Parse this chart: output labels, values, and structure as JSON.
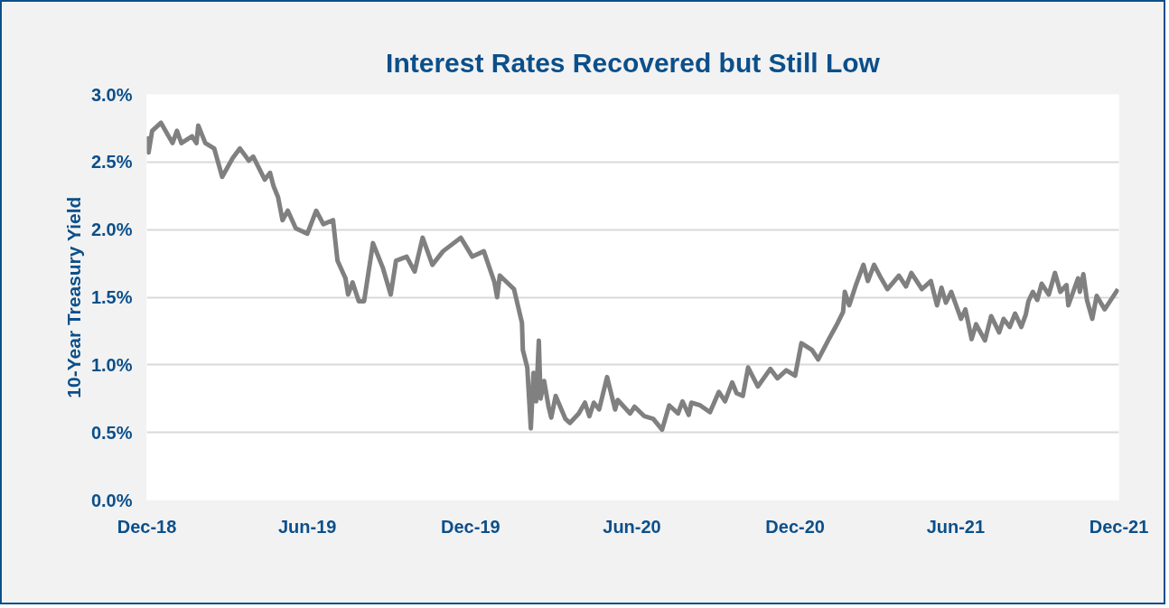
{
  "chart_data": {
    "type": "line",
    "title": "Interest Rates Recovered but Still Low",
    "ylabel": "10-Year Treasury Yield",
    "xlim": [
      "2018-12-31",
      "2021-12-31"
    ],
    "xticks": [
      {
        "value": "2018-12-31",
        "label": "Dec-18"
      },
      {
        "value": "2019-06-30",
        "label": "Jun-19"
      },
      {
        "value": "2019-12-31",
        "label": "Dec-19"
      },
      {
        "value": "2020-06-30",
        "label": "Jun-20"
      },
      {
        "value": "2020-12-31",
        "label": "Dec-20"
      },
      {
        "value": "2021-06-30",
        "label": "Jun-21"
      },
      {
        "value": "2021-12-31",
        "label": "Dec-21"
      }
    ],
    "ylim": [
      0,
      3
    ],
    "yticks": [
      {
        "value": 0,
        "label": "0.0%"
      },
      {
        "value": 0.5,
        "label": "0.5%"
      },
      {
        "value": 1,
        "label": "1.0%"
      },
      {
        "value": 1.5,
        "label": "1.5%"
      },
      {
        "value": 2,
        "label": "2.0%"
      },
      {
        "value": 2.5,
        "label": "2.5%"
      },
      {
        "value": 3,
        "label": "3.0%"
      }
    ],
    "grid": "y",
    "marker": "none",
    "line_style": "solid",
    "series": [
      {
        "color": "#808080",
        "x": [
          "2018-12-31",
          "2019-01-02",
          "2019-01-06",
          "2019-01-16",
          "2019-01-29",
          "2019-02-03",
          "2019-02-08",
          "2019-02-20",
          "2019-02-25",
          "2019-02-27",
          "2019-03-07",
          "2019-03-17",
          "2019-03-26",
          "2019-04-07",
          "2019-04-15",
          "2019-04-25",
          "2019-04-30",
          "2019-05-13",
          "2019-05-19",
          "2019-05-23",
          "2019-05-28",
          "2019-06-02",
          "2019-06-08",
          "2019-06-17",
          "2019-06-30",
          "2019-07-10",
          "2019-07-18",
          "2019-07-29",
          "2019-08-03",
          "2019-08-12",
          "2019-08-15",
          "2019-08-20",
          "2019-08-27",
          "2019-09-02",
          "2019-09-12",
          "2019-09-23",
          "2019-10-02",
          "2019-10-08",
          "2019-10-20",
          "2019-10-29",
          "2019-11-07",
          "2019-11-18",
          "2019-11-30",
          "2019-12-10",
          "2019-12-20",
          "2020-01-02",
          "2020-01-15",
          "2020-01-27",
          "2020-01-30",
          "2020-02-02",
          "2020-02-18",
          "2020-02-27",
          "2020-02-28",
          "2020-03-04",
          "2020-03-08",
          "2020-03-11",
          "2020-03-14",
          "2020-03-17",
          "2020-03-19",
          "2020-03-23",
          "2020-03-28",
          "2020-03-31",
          "2020-04-05",
          "2020-04-16",
          "2020-04-21",
          "2020-05-01",
          "2020-05-08",
          "2020-05-13",
          "2020-05-18",
          "2020-05-24",
          "2020-06-02",
          "2020-06-11",
          "2020-06-14",
          "2020-06-28",
          "2020-07-03",
          "2020-07-14",
          "2020-07-24",
          "2020-08-03",
          "2020-08-11",
          "2020-08-21",
          "2020-08-26",
          "2020-09-02",
          "2020-09-05",
          "2020-09-15",
          "2020-09-26",
          "2020-10-06",
          "2020-10-13",
          "2020-10-21",
          "2020-10-26",
          "2020-11-02",
          "2020-11-08",
          "2020-11-19",
          "2020-12-03",
          "2020-12-11",
          "2020-12-21",
          "2020-12-31",
          "2021-01-07",
          "2021-01-19",
          "2021-01-26",
          "2021-02-07",
          "2021-02-17",
          "2021-02-23",
          "2021-02-25",
          "2021-03-02",
          "2021-03-10",
          "2021-03-18",
          "2021-03-23",
          "2021-03-30",
          "2021-04-07",
          "2021-04-14",
          "2021-04-27",
          "2021-05-05",
          "2021-05-11",
          "2021-05-23",
          "2021-06-02",
          "2021-06-09",
          "2021-06-14",
          "2021-06-19",
          "2021-06-25",
          "2021-07-06",
          "2021-07-11",
          "2021-07-18",
          "2021-07-23",
          "2021-08-02",
          "2021-08-09",
          "2021-08-18",
          "2021-08-23",
          "2021-08-30",
          "2021-09-05",
          "2021-09-12",
          "2021-09-17",
          "2021-09-20",
          "2021-09-25",
          "2021-09-30",
          "2021-10-05",
          "2021-10-13",
          "2021-10-20",
          "2021-10-26",
          "2021-11-02",
          "2021-11-04",
          "2021-11-15",
          "2021-11-17",
          "2021-11-21",
          "2021-11-25",
          "2021-12-01",
          "2021-12-06",
          "2021-12-15",
          "2021-12-23",
          "2021-12-30"
        ],
        "values": [
          2.69,
          2.57,
          2.73,
          2.79,
          2.64,
          2.73,
          2.64,
          2.69,
          2.64,
          2.77,
          2.64,
          2.6,
          2.39,
          2.53,
          2.6,
          2.51,
          2.54,
          2.37,
          2.42,
          2.32,
          2.24,
          2.07,
          2.14,
          2.01,
          1.97,
          2.14,
          2.04,
          2.07,
          1.77,
          1.64,
          1.52,
          1.61,
          1.47,
          1.47,
          1.9,
          1.72,
          1.52,
          1.77,
          1.8,
          1.69,
          1.94,
          1.74,
          1.84,
          1.89,
          1.94,
          1.8,
          1.84,
          1.61,
          1.5,
          1.66,
          1.56,
          1.31,
          1.11,
          0.98,
          0.53,
          0.94,
          0.73,
          1.18,
          0.75,
          0.88,
          0.69,
          0.61,
          0.77,
          0.6,
          0.57,
          0.64,
          0.72,
          0.62,
          0.72,
          0.67,
          0.91,
          0.67,
          0.74,
          0.64,
          0.69,
          0.62,
          0.6,
          0.52,
          0.7,
          0.64,
          0.73,
          0.63,
          0.72,
          0.7,
          0.65,
          0.8,
          0.73,
          0.87,
          0.79,
          0.77,
          0.98,
          0.84,
          0.97,
          0.9,
          0.96,
          0.92,
          1.16,
          1.11,
          1.04,
          1.19,
          1.31,
          1.39,
          1.54,
          1.44,
          1.6,
          1.74,
          1.62,
          1.74,
          1.64,
          1.56,
          1.66,
          1.58,
          1.68,
          1.56,
          1.62,
          1.44,
          1.57,
          1.46,
          1.54,
          1.34,
          1.41,
          1.19,
          1.3,
          1.18,
          1.36,
          1.24,
          1.34,
          1.28,
          1.38,
          1.28,
          1.37,
          1.47,
          1.54,
          1.48,
          1.6,
          1.52,
          1.68,
          1.54,
          1.59,
          1.44,
          1.64,
          1.54,
          1.67,
          1.48,
          1.34,
          1.51,
          1.41,
          1.49,
          1.56
        ]
      }
    ]
  }
}
